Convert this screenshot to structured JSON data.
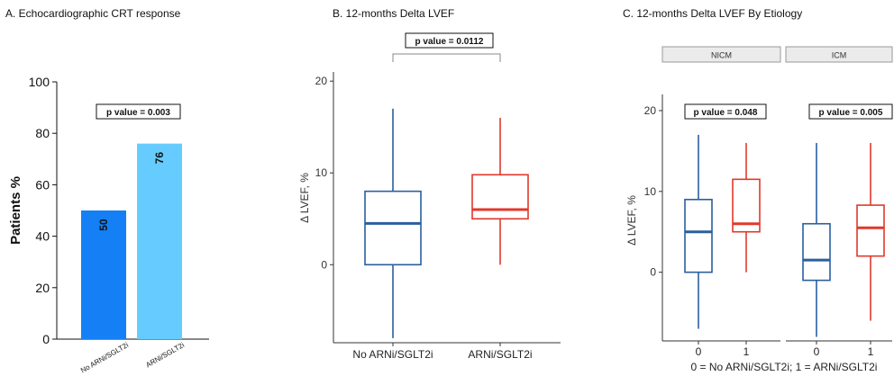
{
  "chart_data": [
    {
      "type": "bar",
      "title": "A. Echocardiographic CRT response",
      "ylabel": "Patients %",
      "xlabel": "",
      "ylim": [
        0,
        100
      ],
      "yticks": [
        0,
        20,
        40,
        60,
        80,
        100
      ],
      "categories": [
        "No ARNi/SGLT2i",
        "ARNi/SGLT2i"
      ],
      "values": [
        50,
        76
      ],
      "value_labels": [
        "50",
        "76"
      ],
      "colors": [
        "#1580f5",
        "#66ccff"
      ],
      "annotation": "p value = 0.003",
      "grid": false
    },
    {
      "type": "boxplot",
      "title": "B. 12-months Delta LVEF",
      "ylabel": "Δ LVEF, %",
      "xlabel": "",
      "ylim": [
        -8.5,
        21
      ],
      "yticks": [
        0,
        10,
        20
      ],
      "categories": [
        "No ARNi/SGLT2i",
        "ARNi/SGLT2i"
      ],
      "boxes": [
        {
          "min": -8,
          "q1": 0,
          "median": 4.5,
          "q3": 8,
          "max": 17,
          "color": "#2a5f9e"
        },
        {
          "min": 0,
          "q1": 5,
          "median": 6,
          "q3": 9.8,
          "max": 16,
          "color": "#e0392b"
        }
      ],
      "annotation": "p value = 0.0112",
      "grid": false
    },
    {
      "type": "boxplot",
      "title": "C. 12-months Delta LVEF By Etiology",
      "ylabel": "Δ LVEF, %",
      "xlabel": "0 = No ARNi/SGLT2i; 1 = ARNi/SGLT2i",
      "ylim": [
        -8.5,
        22
      ],
      "yticks": [
        0,
        10,
        20
      ],
      "facets": [
        {
          "label": "NICM",
          "annotation": "p value = 0.048",
          "categories": [
            "0",
            "1"
          ],
          "boxes": [
            {
              "min": -7,
              "q1": 0,
              "median": 5,
              "q3": 9,
              "max": 17,
              "color": "#2a5f9e"
            },
            {
              "min": 0,
              "q1": 5,
              "median": 6,
              "q3": 11.5,
              "max": 16,
              "color": "#e0392b"
            }
          ]
        },
        {
          "label": "ICM",
          "annotation": "p value = 0.005",
          "categories": [
            "0",
            "1"
          ],
          "boxes": [
            {
              "min": -8,
              "q1": -1,
              "median": 1.5,
              "q3": 6,
              "max": 16,
              "color": "#2a5f9e"
            },
            {
              "min": -6,
              "q1": 2,
              "median": 5.5,
              "q3": 8.3,
              "max": 16,
              "color": "#e0392b"
            }
          ]
        }
      ],
      "grid": false
    }
  ]
}
